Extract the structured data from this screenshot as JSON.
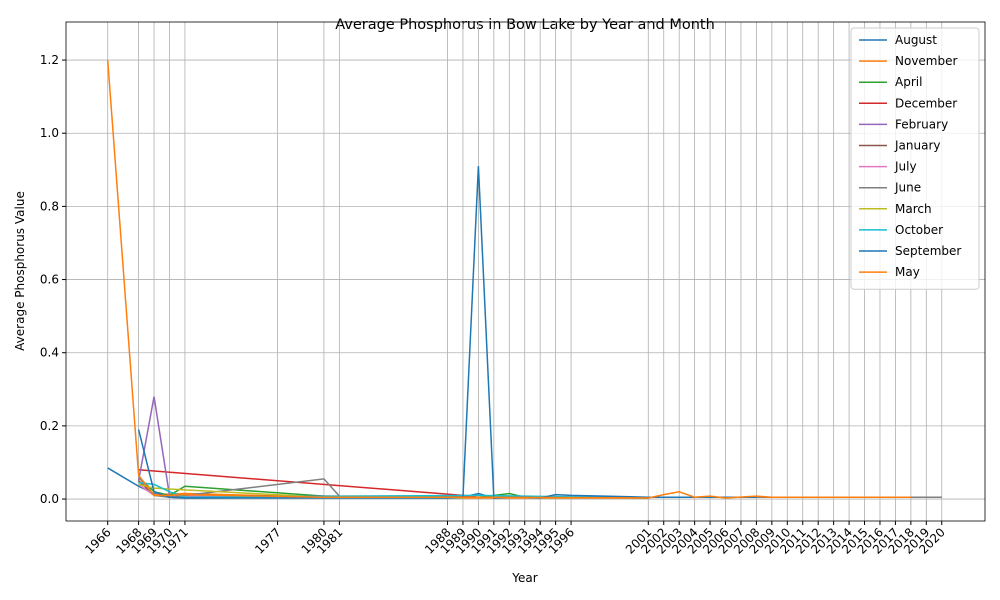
{
  "chart_data": {
    "type": "line",
    "title": "Average Phosphorus in Bow Lake by Year and Month",
    "x_label": "Year",
    "y_label": "Average Phosphorus Value",
    "xlim": [
      1963.3,
      2022.8
    ],
    "ylim": [
      -0.06,
      1.304
    ],
    "xticks": [
      1966,
      1968,
      1969,
      1970,
      1971,
      1977,
      1980,
      1981,
      1988,
      1989,
      1990,
      1991,
      1992,
      1993,
      1994,
      1995,
      1996,
      2001,
      2002,
      2003,
      2004,
      2005,
      2006,
      2007,
      2008,
      2009,
      2010,
      2011,
      2012,
      2013,
      2014,
      2015,
      2016,
      2017,
      2018,
      2019,
      2020
    ],
    "yticks": [
      {
        "value": 0,
        "label": "0.0"
      },
      0.2,
      0.4,
      0.6,
      0.8,
      {
        "value": 1,
        "label": "1.0"
      },
      1.2
    ],
    "grid": true,
    "legend": "upper right",
    "series": [
      {
        "name": "August",
        "color": "#1f77b4",
        "x": [
          1966,
          1968,
          1969,
          1970,
          1971,
          1980,
          1989,
          1990,
          1991,
          1995,
          2001,
          2008,
          2020
        ],
        "values": [
          0.085,
          0.035,
          0.015,
          0.005,
          0.003,
          0.005,
          0.005,
          0.015,
          0.003,
          0.005,
          0.005,
          0.005,
          0.005
        ]
      },
      {
        "name": "November",
        "color": "#ff7f0e",
        "x": [
          1968,
          1969,
          1971,
          1980,
          1990,
          2001
        ],
        "values": [
          0.05,
          0.012,
          0.015,
          0.005,
          0.003,
          0.003
        ]
      },
      {
        "name": "April",
        "color": "#2ca02c",
        "x": [
          1968,
          1969,
          1970,
          1971,
          1980,
          1990,
          1992,
          1993,
          2001
        ],
        "values": [
          0.06,
          0.02,
          0.01,
          0.035,
          0.008,
          0.005,
          0.015,
          0.005,
          0.003
        ]
      },
      {
        "name": "December",
        "color": "#d62728",
        "x": [
          1968,
          1989,
          1990
        ],
        "values": [
          0.08,
          0.01,
          0.005
        ]
      },
      {
        "name": "February",
        "color": "#9467bd",
        "x": [
          1968,
          1969,
          1970,
          1971,
          1980,
          1989
        ],
        "values": [
          0.05,
          0.28,
          0.01,
          0.005,
          0.008,
          0.005
        ]
      },
      {
        "name": "January",
        "color": "#8c564b",
        "x": [
          1968,
          1969,
          1980,
          1989
        ],
        "values": [
          0.05,
          0.01,
          0.008,
          0.008
        ]
      },
      {
        "name": "July",
        "color": "#e377c2",
        "x": [
          1968,
          1969,
          1980,
          2020
        ],
        "values": [
          0.04,
          0.01,
          0.005,
          0.005
        ]
      },
      {
        "name": "June",
        "color": "#7f7f7f",
        "x": [
          1968,
          1969,
          1970,
          1980,
          1981,
          1990,
          2019,
          2020
        ],
        "values": [
          0.06,
          0.01,
          0.005,
          0.055,
          0.008,
          0.005,
          0.005,
          0.005
        ]
      },
      {
        "name": "March",
        "color": "#bcbd22",
        "x": [
          1968,
          1969,
          1971,
          1980,
          1989
        ],
        "values": [
          0.04,
          0.03,
          0.025,
          0.005,
          0.003
        ]
      },
      {
        "name": "October",
        "color": "#17becf",
        "x": [
          1968,
          1969,
          1970,
          1971,
          1990,
          2001
        ],
        "values": [
          0.045,
          0.04,
          0.02,
          0.005,
          0.01,
          0.003
        ]
      },
      {
        "name": "September",
        "color": "#1f77b4",
        "x": [
          1968,
          1969,
          1970,
          1971,
          1988,
          1989,
          1990,
          1991,
          1992,
          1993,
          1994,
          1995,
          1996,
          2001,
          2004,
          2008
        ],
        "values": [
          0.19,
          0.02,
          0.005,
          0.003,
          0.003,
          0.005,
          0.91,
          0.003,
          0.005,
          0.005,
          0.003,
          0.012,
          0.01,
          0.005,
          0.005,
          0.005
        ]
      },
      {
        "name": "May",
        "color": "#ff7f0e",
        "x": [
          1966,
          1968,
          1969,
          1970,
          1971,
          1980,
          1990,
          2001,
          2002,
          2003,
          2004,
          2005,
          2006,
          2008,
          2009,
          2018
        ],
        "values": [
          1.2,
          0.065,
          0.01,
          0.01,
          0.012,
          0.005,
          0.005,
          0.003,
          0.012,
          0.02,
          0.005,
          0.008,
          0.003,
          0.008,
          0.005,
          0.005
        ]
      }
    ]
  }
}
